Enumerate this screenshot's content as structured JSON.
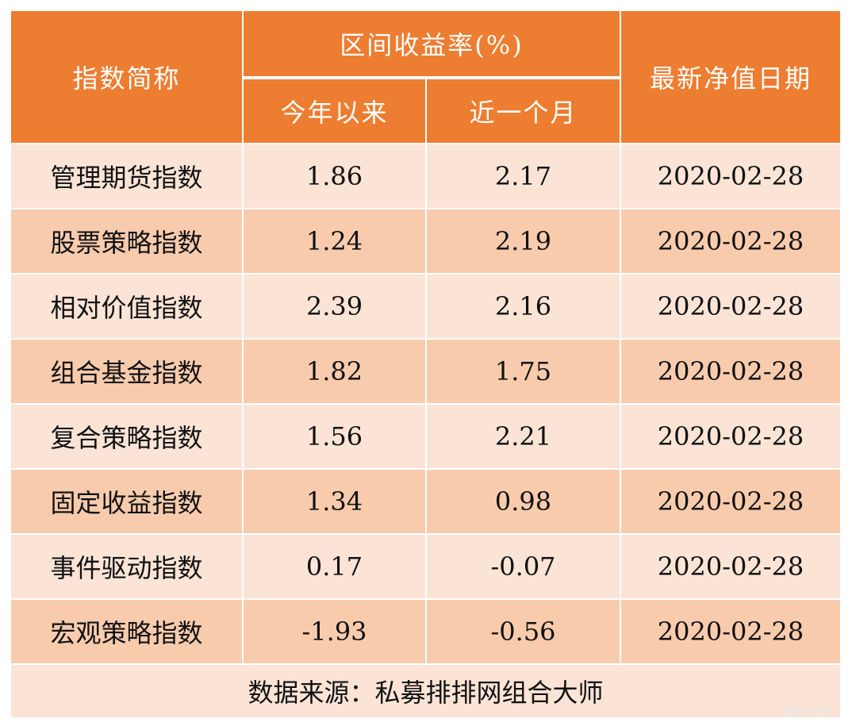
{
  "header": {
    "name_col": "指数简称",
    "return_group": "区间收益率(%)",
    "ytd": "今年以来",
    "one_month": "近一个月",
    "nav_date": "最新净值日期"
  },
  "rows": [
    {
      "name": "管理期货指数",
      "ytd": "1.86",
      "month": "2.17",
      "date": "2020-02-28"
    },
    {
      "name": "股票策略指数",
      "ytd": "1.24",
      "month": "2.19",
      "date": "2020-02-28"
    },
    {
      "name": "相对价值指数",
      "ytd": "2.39",
      "month": "2.16",
      "date": "2020-02-28"
    },
    {
      "name": "组合基金指数",
      "ytd": "1.82",
      "month": "1.75",
      "date": "2020-02-28"
    },
    {
      "name": "复合策略指数",
      "ytd": "1.56",
      "month": "2.21",
      "date": "2020-02-28"
    },
    {
      "name": "固定收益指数",
      "ytd": "1.34",
      "month": "0.98",
      "date": "2020-02-28"
    },
    {
      "name": "事件驱动指数",
      "ytd": "0.17",
      "month": "-0.07",
      "date": "2020-02-28"
    },
    {
      "name": "宏观策略指数",
      "ytd": "-1.93",
      "month": "-0.56",
      "date": "2020-02-28"
    }
  ],
  "footer": "数据来源：私募排排网组合大师",
  "watermark": "宽客之家",
  "colors": {
    "header": "#ED7D31",
    "row_light": "#FBE4D6",
    "row_dark": "#F8CBAD"
  }
}
